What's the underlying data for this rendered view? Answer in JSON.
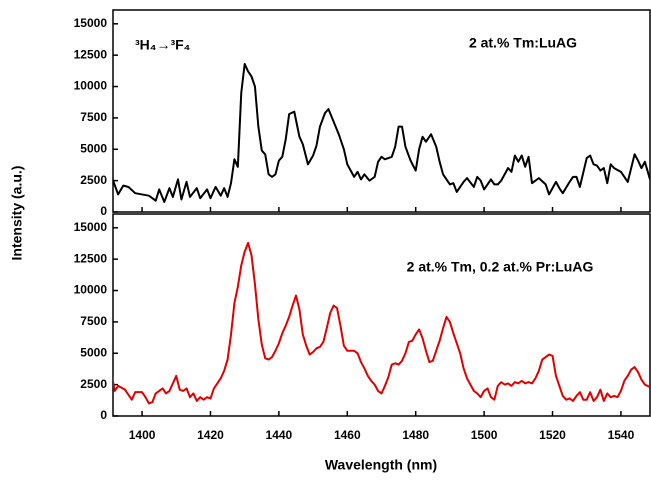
{
  "chart_data": [
    {
      "type": "line",
      "ylabel": "Intensity (a.u.)",
      "annotation": "³H₄→³F₄",
      "xlim": [
        1391.5,
        1548.5
      ],
      "ylim": [
        0,
        16100
      ],
      "xticks": [
        1400,
        1420,
        1440,
        1460,
        1480,
        1500,
        1520,
        1540
      ],
      "yticks": [
        0,
        2500,
        5000,
        7500,
        10000,
        12500,
        15000
      ],
      "x": [
        1391,
        1393,
        1394.5,
        1396,
        1398,
        1400,
        1402,
        1404,
        1405,
        1406.5,
        1408,
        1409,
        1410.5,
        1411.5,
        1413,
        1414,
        1416,
        1417,
        1419,
        1420,
        1421.5,
        1423,
        1424,
        1425,
        1426,
        1427,
        1428,
        1429,
        1430,
        1431,
        1432,
        1433,
        1434,
        1435,
        1436,
        1437,
        1438,
        1439,
        1440,
        1441,
        1442,
        1443,
        1444.5,
        1446,
        1447,
        1448.5,
        1450,
        1451,
        1452,
        1453.5,
        1454.5,
        1456,
        1457.5,
        1459,
        1460,
        1461,
        1462,
        1463,
        1464,
        1465,
        1466.5,
        1468,
        1469,
        1470,
        1471,
        1473,
        1474,
        1475,
        1476,
        1477,
        1478.5,
        1480,
        1481,
        1482,
        1483,
        1484.5,
        1486,
        1487,
        1488,
        1489,
        1490,
        1491,
        1492,
        1494,
        1495,
        1497,
        1498,
        1499,
        1500,
        1502,
        1503,
        1504,
        1505,
        1507,
        1508,
        1509,
        1510,
        1511,
        1512,
        1513,
        1514,
        1516,
        1518,
        1519,
        1521,
        1522,
        1523,
        1525,
        1526,
        1527,
        1528,
        1530,
        1531,
        1532,
        1533,
        1534,
        1535,
        1536,
        1537,
        1538,
        1540,
        1542,
        1544,
        1545,
        1546,
        1547,
        1548.5
      ],
      "series": [
        {
          "name": "2 at.% Tm:LuAG",
          "color": "#000000",
          "values": [
            2900,
            1400,
            2100,
            2000,
            1500,
            1400,
            1300,
            900,
            1800,
            800,
            1900,
            1200,
            2600,
            1000,
            2400,
            1200,
            1900,
            1100,
            1800,
            1100,
            2000,
            1300,
            1900,
            1200,
            2300,
            4200,
            3600,
            9500,
            11800,
            11200,
            10800,
            10000,
            6800,
            4900,
            4600,
            3000,
            2800,
            3000,
            4100,
            4400,
            5800,
            7800,
            8000,
            6000,
            5400,
            3800,
            4500,
            5300,
            6800,
            7900,
            8200,
            7200,
            6200,
            5000,
            3800,
            3300,
            2800,
            3200,
            2600,
            3000,
            2500,
            2800,
            4000,
            4400,
            4200,
            4400,
            5200,
            6800,
            6800,
            5200,
            4100,
            3300,
            5000,
            6000,
            5600,
            6200,
            5200,
            4000,
            3000,
            2600,
            2200,
            2300,
            1600,
            2400,
            2700,
            2000,
            2800,
            2500,
            1800,
            2600,
            2200,
            2200,
            2500,
            3500,
            3200,
            4500,
            4000,
            4500,
            3600,
            4400,
            2300,
            2700,
            2200,
            1400,
            2400,
            1900,
            1500,
            2400,
            2800,
            2800,
            2000,
            4300,
            4500,
            3800,
            3700,
            3300,
            3500,
            2300,
            3800,
            3500,
            3200,
            2400,
            4600,
            4100,
            3500,
            4000,
            2600
          ]
        }
      ]
    },
    {
      "type": "line",
      "xlabel": "Wavelength (nm)",
      "xlim": [
        1391.5,
        1548.5
      ],
      "ylim": [
        0,
        16100
      ],
      "xticks": [
        1400,
        1420,
        1440,
        1460,
        1480,
        1500,
        1520,
        1540
      ],
      "yticks": [
        0,
        2500,
        5000,
        7500,
        10000,
        12500,
        15000
      ],
      "x": [
        1391,
        1392,
        1393,
        1395,
        1397,
        1398,
        1400,
        1401,
        1402,
        1403,
        1404,
        1406,
        1407,
        1408,
        1409,
        1410,
        1411,
        1412,
        1413,
        1414,
        1415,
        1416,
        1417,
        1418,
        1419,
        1420,
        1421,
        1422,
        1423,
        1424,
        1425,
        1426,
        1427,
        1428,
        1429,
        1430,
        1431,
        1432,
        1433,
        1434,
        1435,
        1436,
        1437,
        1438,
        1439,
        1440,
        1441,
        1442,
        1443,
        1444,
        1445,
        1446,
        1447,
        1448,
        1449,
        1450,
        1451,
        1452,
        1453,
        1454,
        1455,
        1456,
        1457,
        1458,
        1459,
        1460,
        1461,
        1462,
        1463,
        1464,
        1465,
        1466,
        1467,
        1468,
        1469,
        1470,
        1471,
        1472,
        1473,
        1474,
        1475,
        1476,
        1477,
        1478,
        1479,
        1480,
        1481,
        1482,
        1483,
        1484,
        1485,
        1486,
        1487,
        1488,
        1489,
        1490,
        1491,
        1492,
        1493,
        1494,
        1495,
        1496,
        1497,
        1498,
        1499,
        1500,
        1501,
        1502,
        1503,
        1504,
        1505,
        1506,
        1507,
        1508,
        1509,
        1510,
        1511,
        1512,
        1513,
        1514,
        1515,
        1516,
        1517,
        1518,
        1519,
        1520,
        1521,
        1522,
        1523,
        1524,
        1525,
        1526,
        1527,
        1528,
        1529,
        1530,
        1531,
        1532,
        1533,
        1534,
        1535,
        1536,
        1537,
        1538,
        1539,
        1540,
        1541,
        1542,
        1543,
        1544,
        1545,
        1546,
        1547,
        1548.5
      ],
      "series": [
        {
          "name": "2 at.% Tm, 0.2 at.% Pr:LuAG",
          "color": "#e00000",
          "values": [
            3500,
            2000,
            2400,
            2100,
            1300,
            1900,
            1900,
            1500,
            1000,
            1100,
            1800,
            2200,
            1800,
            2000,
            2600,
            3200,
            2100,
            2000,
            2200,
            1500,
            1800,
            1200,
            1500,
            1300,
            1500,
            1400,
            2200,
            2600,
            3000,
            3600,
            4500,
            6500,
            9000,
            10300,
            12000,
            13100,
            13800,
            12800,
            10500,
            7700,
            5700,
            4600,
            4500,
            4700,
            5200,
            5800,
            6600,
            7200,
            7900,
            8800,
            9600,
            8500,
            6500,
            5600,
            4900,
            5100,
            5400,
            5500,
            5900,
            7000,
            8200,
            8800,
            8600,
            7200,
            5600,
            5200,
            5200,
            5200,
            5000,
            4300,
            3800,
            3200,
            2800,
            2500,
            2000,
            1800,
            2400,
            3100,
            4100,
            4200,
            4100,
            4400,
            5000,
            5900,
            6000,
            6500,
            6900,
            6200,
            5200,
            4300,
            4400,
            5200,
            6000,
            7000,
            7900,
            7500,
            6600,
            5800,
            5000,
            3800,
            3000,
            2500,
            2000,
            1800,
            1500,
            2000,
            2200,
            1500,
            1300,
            2400,
            2700,
            2500,
            2600,
            2400,
            2700,
            2600,
            2800,
            2600,
            2700,
            2600,
            3000,
            3600,
            4500,
            4700,
            4900,
            4800,
            3200,
            2400,
            1600,
            1300,
            1400,
            1200,
            1600,
            1900,
            1300,
            1300,
            1900,
            1200,
            1500,
            2100,
            1200,
            1800,
            1500,
            1600,
            1500,
            2000,
            2800,
            3200,
            3700,
            3900,
            3500,
            2900,
            2500,
            2300
          ]
        }
      ]
    }
  ]
}
